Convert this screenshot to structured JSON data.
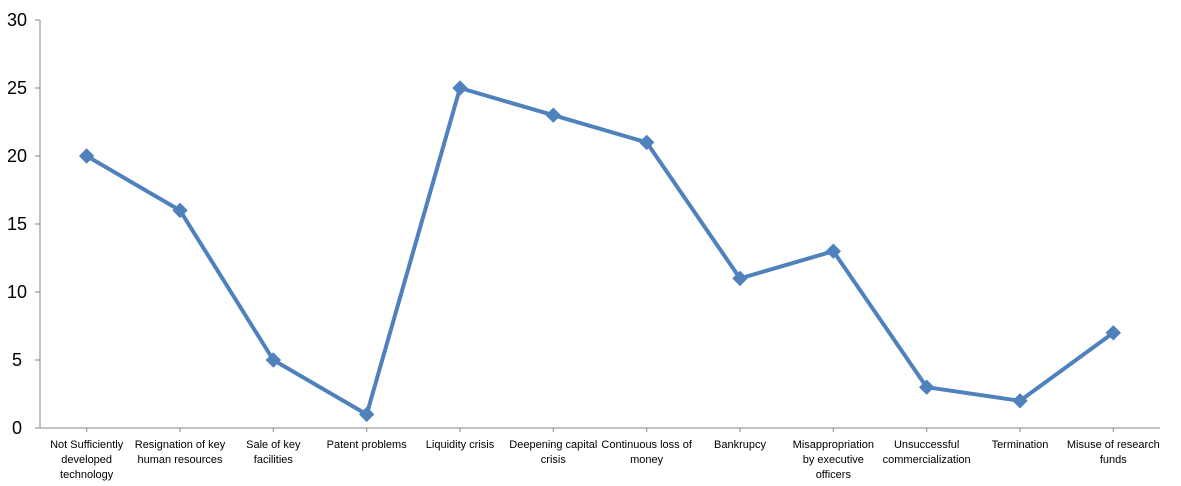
{
  "chart_data": {
    "type": "line",
    "title": "",
    "xlabel": "",
    "ylabel": "",
    "ylim": [
      0,
      30
    ],
    "yticks": [
      0,
      5,
      10,
      15,
      20,
      25,
      30
    ],
    "grid": false,
    "legend": "none",
    "marker": "diamond",
    "categories": [
      "Not Sufficiently developed technology",
      "Resignation of key human resources",
      "Sale of key facilities",
      "Patent problems",
      "Liquidity crisis",
      "Deepening capital crisis",
      "Continuous loss of money",
      "Bankrupcy",
      "Misappropriation by executive officers",
      "Unsuccessful commercialization",
      "Termination",
      "Misuse of research funds"
    ],
    "category_lines": [
      [
        "Not Sufficiently",
        "developed",
        "technology"
      ],
      [
        "Resignation of key",
        "human resources"
      ],
      [
        "Sale of key",
        "facilities"
      ],
      [
        "Patent problems"
      ],
      [
        "Liquidity crisis"
      ],
      [
        "Deepening capital",
        "crisis"
      ],
      [
        "Continuous loss of",
        "money"
      ],
      [
        "Bankrupcy"
      ],
      [
        "Misappropriation",
        "by executive",
        "officers"
      ],
      [
        "Unsuccessful",
        "commercialization"
      ],
      [
        "Termination"
      ],
      [
        "Misuse of research",
        "funds"
      ]
    ],
    "series": [
      {
        "values": [
          20,
          16,
          5,
          1,
          25,
          23,
          21,
          11,
          13,
          3,
          2,
          7
        ]
      }
    ],
    "colors": {
      "line": "#4F81BD",
      "axis": "#868686",
      "text": "#000000"
    }
  }
}
